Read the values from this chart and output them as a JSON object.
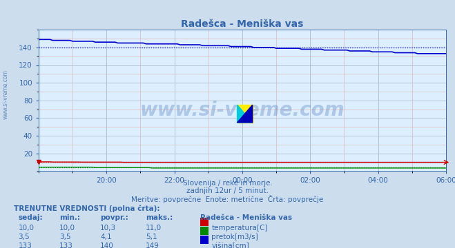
{
  "title": "Radešca - Meniška vas",
  "bg_color": "#ccdded",
  "plot_bg_color": "#ddeeff",
  "grid_color_major": "#aabbcc",
  "grid_color_minor": "#ddaaaa",
  "ylim": [
    0,
    160
  ],
  "yticks": [
    20,
    40,
    60,
    80,
    100,
    120,
    140
  ],
  "xtick_labels": [
    "20:00",
    "22:00",
    "00:00",
    "02:00",
    "04:00",
    "06:00"
  ],
  "subtitle_lines": [
    "Slovenija / reke in morje.",
    "zadnjih 12ur / 5 minut.",
    "Meritve: povprečne  Enote: metrične  Črta: povprečje"
  ],
  "table_header": "TRENUTNE VREDNOSTI (polna črta):",
  "table_cols": [
    "sedaj:",
    "min.:",
    "povpr.:",
    "maks.:"
  ],
  "table_station": "Radešca - Meniška vas",
  "table_rows": [
    {
      "sedaj": "10,0",
      "min": "10,0",
      "povpr": "10,3",
      "maks": "11,0",
      "color": "#cc0000",
      "label": "temperatura[C]"
    },
    {
      "sedaj": "3,5",
      "min": "3,5",
      "povpr": "4,1",
      "maks": "5,1",
      "color": "#008800",
      "label": "pretok[m3/s]"
    },
    {
      "sedaj": "133",
      "min": "133",
      "povpr": "140",
      "maks": "149",
      "color": "#0000cc",
      "label": "višina[cm]"
    }
  ],
  "temp_color": "#cc0000",
  "flow_color": "#008800",
  "height_color": "#0000cc",
  "watermark": "www.si-vreme.com",
  "watermark_color": "#3366aa",
  "watermark_alpha": 0.28,
  "text_color": "#3366aa",
  "left_watermark": "www.si-vreme.com"
}
